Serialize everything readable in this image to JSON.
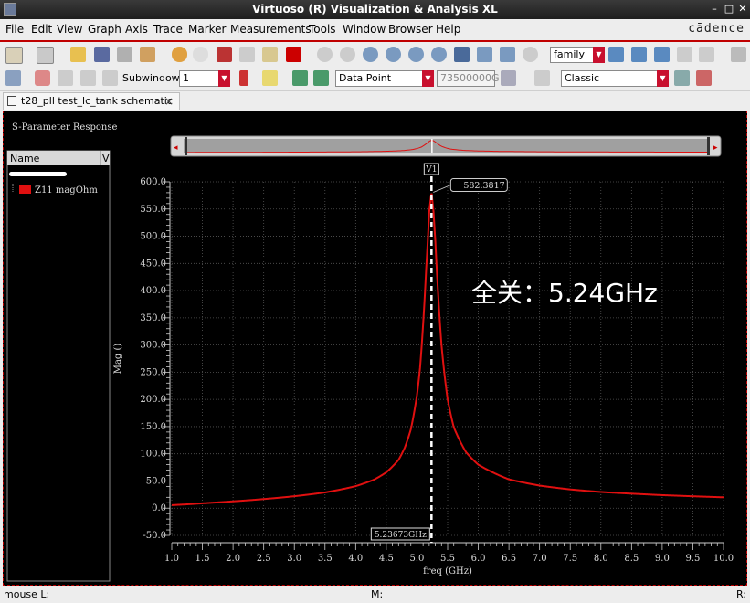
{
  "window": {
    "title": "Virtuoso (R) Visualization & Analysis XL"
  },
  "menu": {
    "items": [
      "File",
      "Edit",
      "View",
      "Graph",
      "Axis",
      "Trace",
      "Marker",
      "Measurements",
      "Tools",
      "Window",
      "Browser",
      "Help"
    ],
    "brand": "cādence"
  },
  "toolbar": {
    "family_value": "family",
    "subwindow_label": "Subwindow:",
    "subwindow_value": "1",
    "marker_type": "Data Point",
    "freq_value": "73500000G",
    "style_value": "Classic"
  },
  "tab": {
    "label": "t28_pll test_lc_tank schematic"
  },
  "panel": {
    "title": "S-Parameter Response",
    "name_header": "Name",
    "value_header": "V",
    "trace_name": "Z11 magOhm"
  },
  "colors": {
    "trace": "#e01010",
    "background": "#000000",
    "accent": "#c8102e"
  },
  "annotation": "全关：5.24GHz",
  "marker": {
    "name": "V1",
    "x_label": "5.23673GHz",
    "peak_label": "582.3817",
    "x": 5.23673,
    "y": 582.3817
  },
  "status": {
    "left": "mouse L:",
    "middle": "M:",
    "right": "R:"
  },
  "chart_data": {
    "type": "line",
    "title": "",
    "xlabel": "freq (GHz)",
    "ylabel": "Mag ()",
    "xlim": [
      1.0,
      10.0
    ],
    "ylim": [
      -50,
      600
    ],
    "xticks": [
      1.0,
      1.5,
      2.0,
      2.5,
      3.0,
      3.5,
      4.0,
      4.5,
      5.0,
      5.5,
      6.0,
      6.5,
      7.0,
      7.5,
      8.0,
      8.5,
      9.0,
      9.5,
      10.0
    ],
    "yticks": [
      -50,
      0,
      50,
      100,
      150,
      200,
      250,
      300,
      350,
      400,
      450,
      500,
      550,
      600
    ],
    "grid": true,
    "legend": "left-panel",
    "series": [
      {
        "name": "Z11 magOhm",
        "x": [
          1.0,
          1.5,
          2.0,
          2.5,
          3.0,
          3.5,
          4.0,
          4.3,
          4.5,
          4.7,
          4.8,
          4.9,
          5.0,
          5.05,
          5.1,
          5.15,
          5.2,
          5.23673,
          5.27,
          5.3,
          5.35,
          5.4,
          5.5,
          5.6,
          5.8,
          6.0,
          6.5,
          7.0,
          7.5,
          8.0,
          9.0,
          10.0
        ],
        "y": [
          5.6,
          9.0,
          12.6,
          16.8,
          22.0,
          29.0,
          40.5,
          52.5,
          66.0,
          89.0,
          111,
          145,
          208,
          258,
          338,
          440,
          545,
          582.4,
          545,
          490,
          385,
          300,
          200,
          149,
          103,
          80,
          53,
          41.5,
          34.5,
          29.8,
          24.0,
          20.0
        ]
      }
    ]
  }
}
